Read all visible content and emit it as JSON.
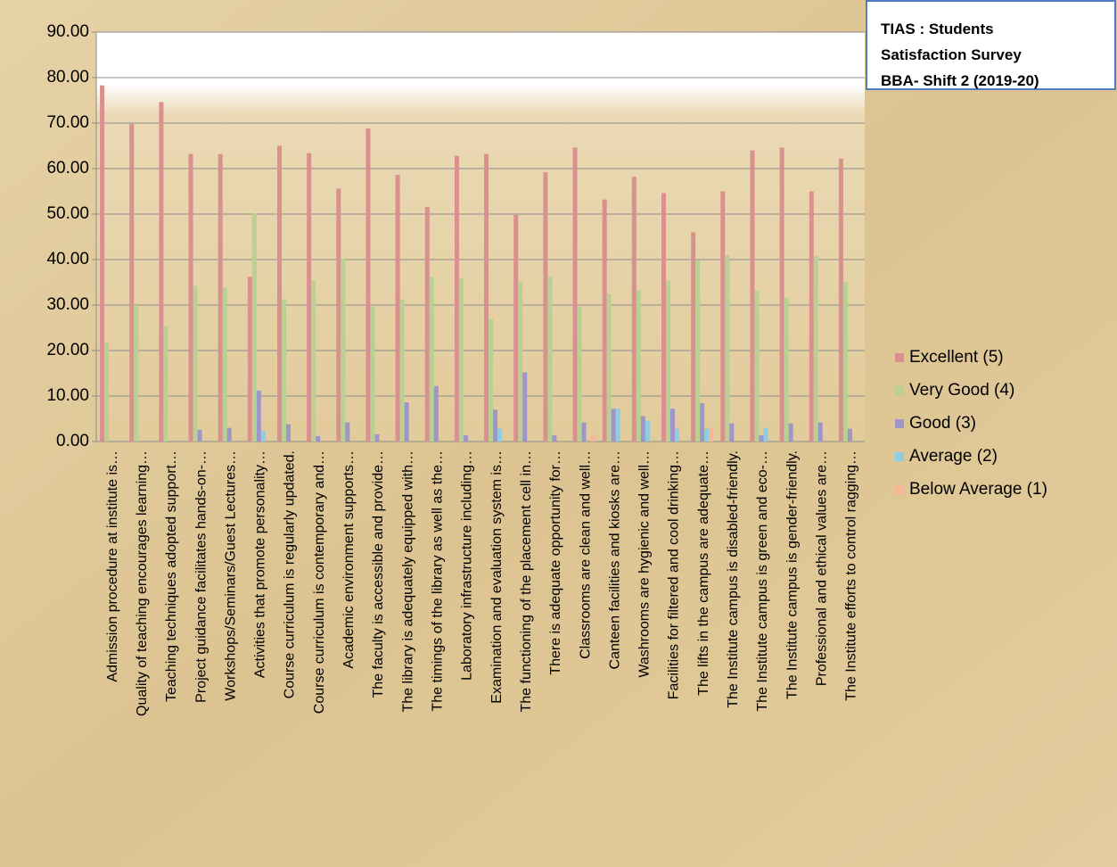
{
  "chart_data": {
    "type": "bar",
    "title": "TIAS : Students Satisfaction Survey BBA- Shift 2 (2019-20)",
    "categories": [
      "Admission procedure at institute is…",
      "Quality of teaching encourages learning…",
      "Teaching techniques adopted support…",
      "Project guidance facilitates hands-on-…",
      "Workshops/Seminars/Guest Lectures…",
      "Activities that promote personality…",
      "Course curriculum is regularly updated.",
      "Course curriculum is contemporary and…",
      "Academic environment supports…",
      "The faculty is accessible and provide…",
      "The library is adequately equipped with…",
      "The timings of the library as well as the…",
      "Laboratory infrastructure including…",
      "Examination and evaluation system is…",
      "The functioning of the placement cell in…",
      "There is adequate opportunity for…",
      "Classrooms are clean and well…",
      "Canteen facilities and kiosks are…",
      "Washrooms are hygienic and well…",
      "Facilities for filtered and cool drinking…",
      "The lifts in the campus are adequate…",
      "The Institute campus is disabled-friendly.",
      "The Institute campus is green and eco-…",
      "The Institute campus is gender-friendly.",
      "Professional and ethical values are…",
      "The Institute efforts to control ragging…"
    ],
    "series": [
      {
        "name": "Excellent (5)",
        "color": "#d9908e",
        "values": [
          78.3,
          69.8,
          74.6,
          63.2,
          63.2,
          36.2,
          65.0,
          63.4,
          55.6,
          68.8,
          58.6,
          51.6,
          62.8,
          63.2,
          49.8,
          59.2,
          64.6,
          53.2,
          58.2,
          54.6,
          46.0,
          55.0,
          64.0,
          64.6,
          55.0,
          62.2
        ]
      },
      {
        "name": "Very Good (4)",
        "color": "#b8d192",
        "values": [
          21.6,
          30.0,
          25.4,
          34.2,
          33.8,
          50.2,
          31.2,
          35.4,
          40.2,
          29.6,
          31.2,
          36.2,
          35.8,
          27.0,
          35.2,
          36.2,
          29.6,
          32.4,
          33.2,
          35.4,
          39.8,
          41.0,
          33.2,
          31.6,
          40.8,
          35.0
        ]
      },
      {
        "name": "Good (3)",
        "color": "#a095c9",
        "values": [
          0,
          0,
          0,
          2.6,
          3.0,
          11.2,
          3.8,
          1.2,
          4.2,
          1.6,
          8.6,
          12.2,
          1.4,
          7.0,
          15.2,
          1.4,
          4.2,
          7.2,
          5.6,
          7.2,
          8.4,
          4.0,
          1.4,
          4.0,
          4.2,
          2.8
        ]
      },
      {
        "name": "Average (2)",
        "color": "#8fcde0",
        "values": [
          0,
          0,
          0,
          0,
          0,
          2.4,
          0,
          0,
          0,
          0,
          0,
          0,
          0,
          2.8,
          0,
          0,
          0,
          7.2,
          4.6,
          2.8,
          2.8,
          0,
          3.0,
          0,
          0,
          0
        ]
      },
      {
        "name": "Below Average (1)",
        "color": "#f8b696",
        "values": [
          0,
          0,
          0,
          0,
          0,
          0,
          0,
          0,
          0,
          0,
          0,
          0,
          0,
          0,
          0,
          0,
          1.6,
          0,
          0,
          0,
          3.0,
          0,
          0,
          0,
          0,
          0
        ]
      }
    ],
    "ylim": [
      0,
      90
    ],
    "yticks": [
      {
        "value": 0,
        "label": "0.00"
      },
      {
        "value": 10,
        "label": "10.00"
      },
      {
        "value": 20,
        "label": "20.00"
      },
      {
        "value": 30,
        "label": "30.00"
      },
      {
        "value": 40,
        "label": "40.00"
      },
      {
        "value": 50,
        "label": "50.00"
      },
      {
        "value": 60,
        "label": "60.00"
      },
      {
        "value": 70,
        "label": "70.00"
      },
      {
        "value": 80,
        "label": "80.00"
      },
      {
        "value": 90,
        "label": "90.00"
      }
    ],
    "grid": true,
    "legend": "right"
  }
}
